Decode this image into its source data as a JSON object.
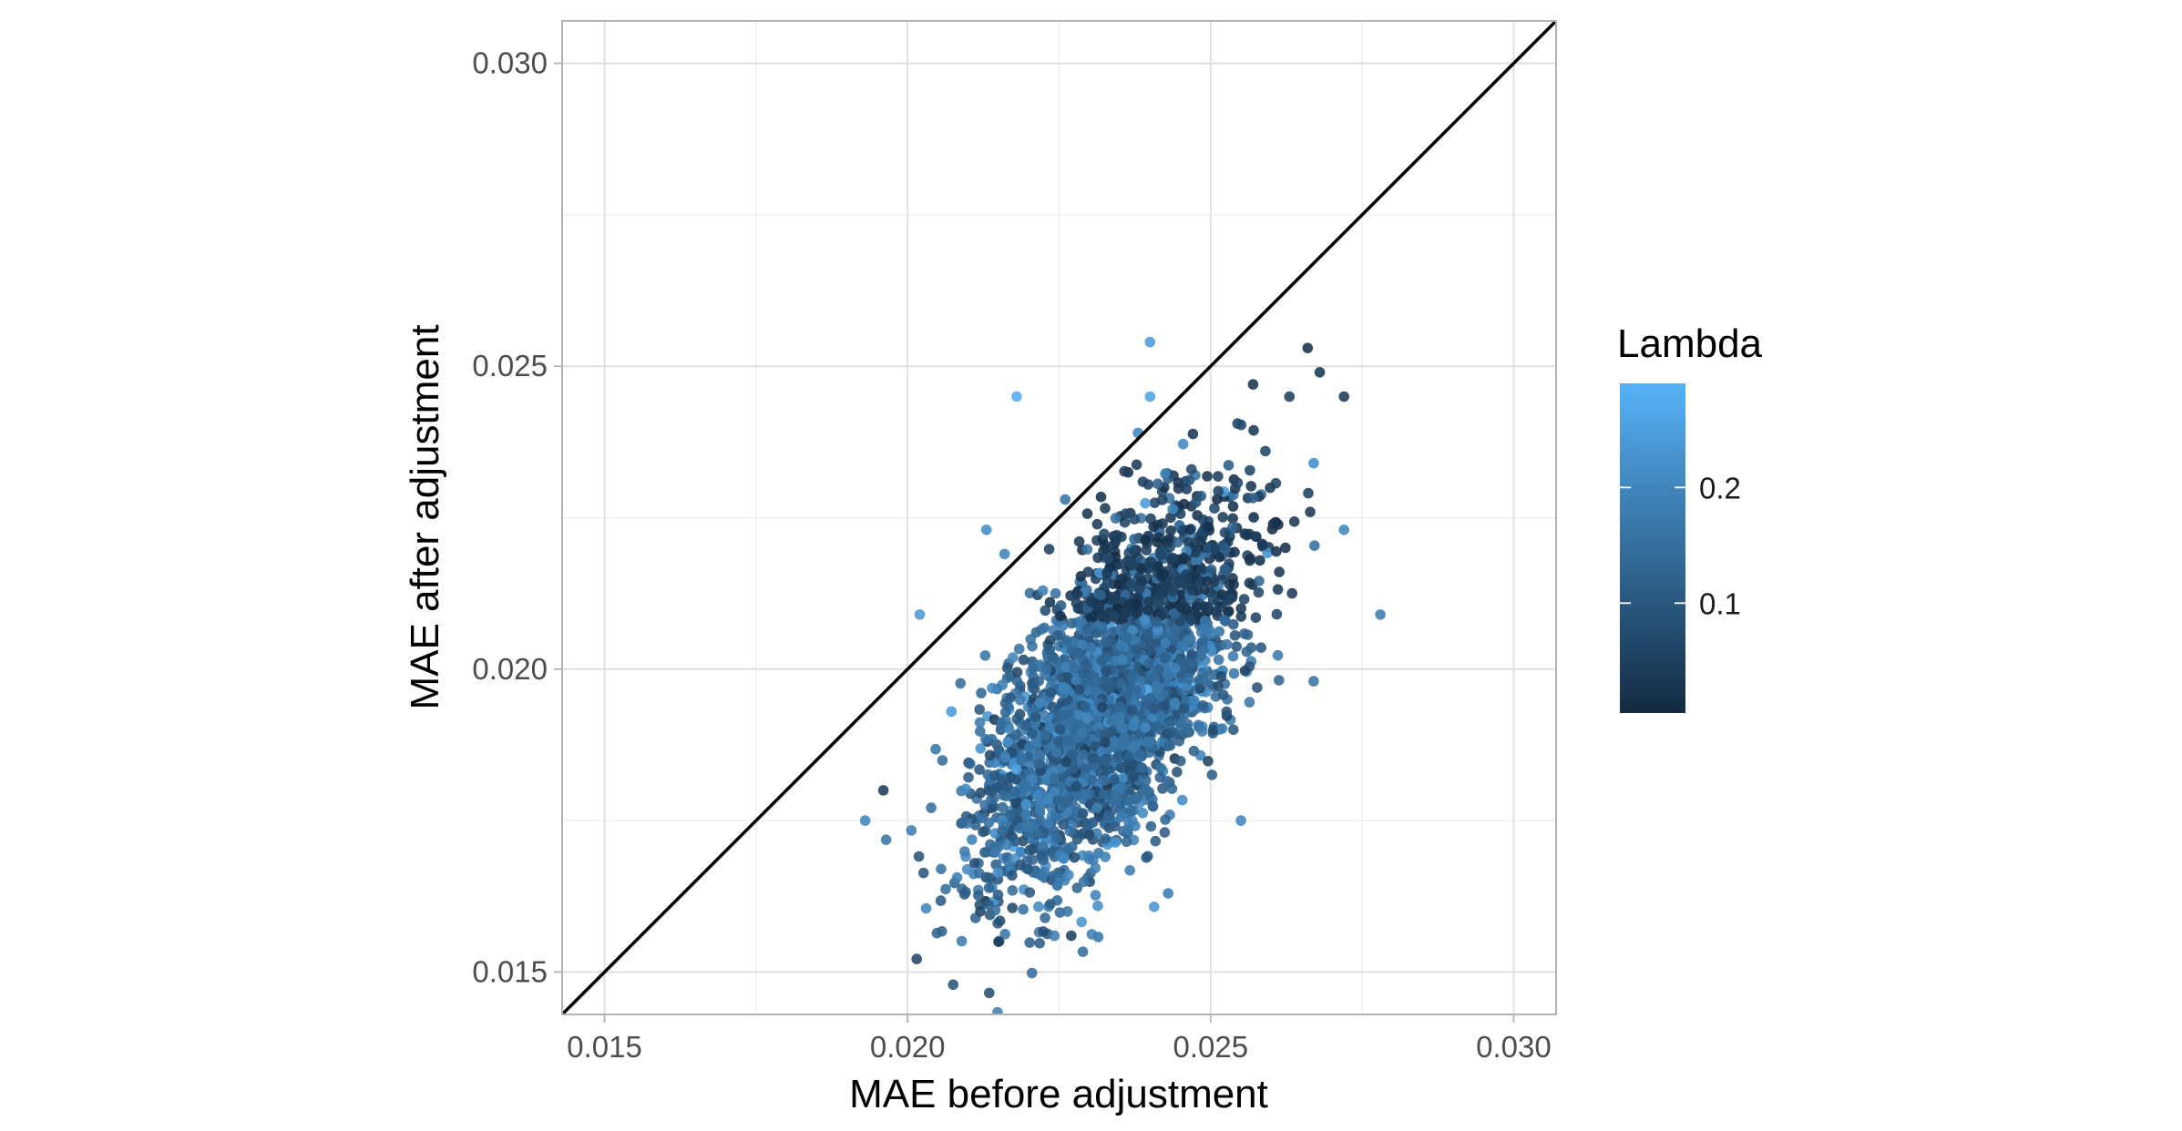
{
  "chart_data": {
    "type": "scatter",
    "title": "",
    "xlabel": "MAE before adjustment",
    "ylabel": "MAE after adjustment",
    "xlim": [
      0.0143,
      0.0307
    ],
    "ylim": [
      0.0143,
      0.0307
    ],
    "x_ticks": [
      "0.015",
      "0.020",
      "0.025",
      "0.030"
    ],
    "x_tick_values": [
      0.015,
      0.02,
      0.025,
      0.03
    ],
    "y_ticks": [
      "0.015",
      "0.020",
      "0.025",
      "0.030"
    ],
    "y_tick_values": [
      0.015,
      0.02,
      0.025,
      0.03
    ],
    "grid": true,
    "theme": "light",
    "reference_line": {
      "type": "identity",
      "slope": 1,
      "intercept": 0,
      "color": "#000000"
    },
    "color_scale": {
      "title": "Lambda",
      "low": 0.005,
      "high": 0.29,
      "low_color": "#132B43",
      "high_color": "#56B1F7",
      "breaks": [
        "0.1",
        "0.2"
      ],
      "break_values": [
        0.1,
        0.2
      ],
      "legend_position": "right"
    },
    "point_cloud": {
      "n_points": 3000,
      "center_x": 0.0234,
      "center_y": 0.0196,
      "sd_x": 0.00105,
      "sd_y": 0.0015,
      "correlation": 0.62
    },
    "points": [
      {
        "x": 0.024,
        "y": 0.0254,
        "lambda": 0.24
      },
      {
        "x": 0.0218,
        "y": 0.0245,
        "lambda": 0.28
      },
      {
        "x": 0.024,
        "y": 0.0245,
        "lambda": 0.26
      },
      {
        "x": 0.0238,
        "y": 0.0239,
        "lambda": 0.2
      },
      {
        "x": 0.0266,
        "y": 0.0253,
        "lambda": 0.02
      },
      {
        "x": 0.0268,
        "y": 0.0249,
        "lambda": 0.03
      },
      {
        "x": 0.0272,
        "y": 0.0245,
        "lambda": 0.04
      },
      {
        "x": 0.0257,
        "y": 0.0247,
        "lambda": 0.03
      },
      {
        "x": 0.0263,
        "y": 0.0245,
        "lambda": 0.05
      },
      {
        "x": 0.0267,
        "y": 0.0234,
        "lambda": 0.22
      },
      {
        "x": 0.0272,
        "y": 0.0223,
        "lambda": 0.2
      },
      {
        "x": 0.0278,
        "y": 0.0209,
        "lambda": 0.18
      },
      {
        "x": 0.0202,
        "y": 0.0209,
        "lambda": 0.24
      },
      {
        "x": 0.0213,
        "y": 0.0223,
        "lambda": 0.21
      },
      {
        "x": 0.0216,
        "y": 0.0219,
        "lambda": 0.19
      },
      {
        "x": 0.0226,
        "y": 0.0228,
        "lambda": 0.16
      },
      {
        "x": 0.0193,
        "y": 0.0175,
        "lambda": 0.2
      },
      {
        "x": 0.0196,
        "y": 0.018,
        "lambda": 0.04
      },
      {
        "x": 0.0215,
        "y": 0.0155,
        "lambda": 0.03
      },
      {
        "x": 0.0227,
        "y": 0.0156,
        "lambda": 0.05
      },
      {
        "x": 0.0243,
        "y": 0.0163,
        "lambda": 0.18
      },
      {
        "x": 0.0255,
        "y": 0.0175,
        "lambda": 0.2
      },
      {
        "x": 0.0267,
        "y": 0.0198,
        "lambda": 0.16
      },
      {
        "x": 0.0212,
        "y": 0.016,
        "lambda": 0.06
      }
    ]
  }
}
